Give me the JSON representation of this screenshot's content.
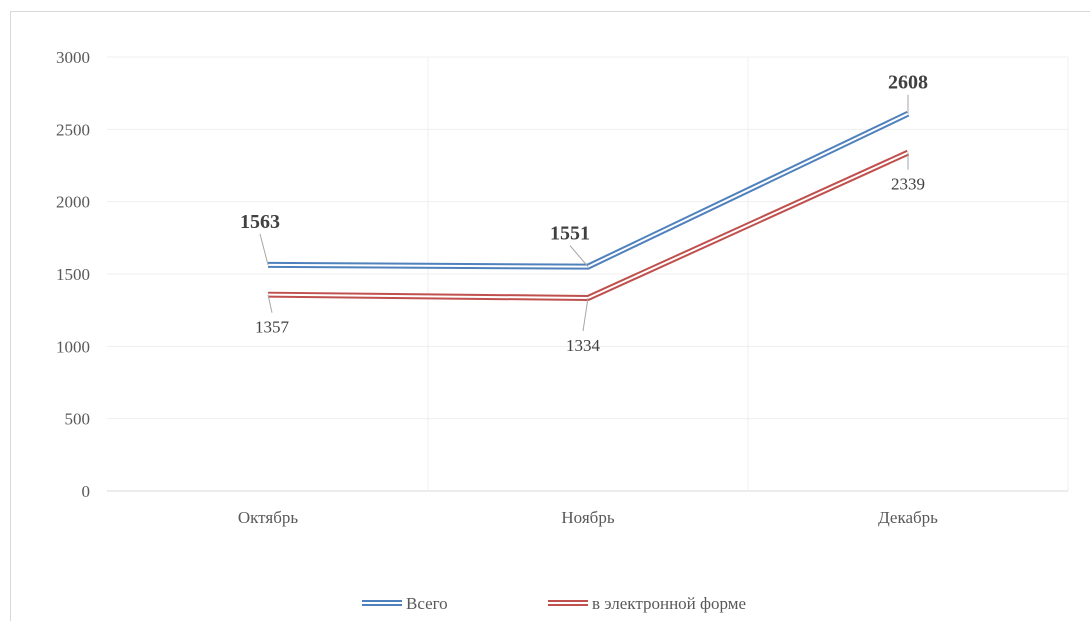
{
  "chart_data": {
    "type": "line",
    "categories": [
      "Октябрь",
      "Ноябрь",
      "Декабрь"
    ],
    "series": [
      {
        "name": "Всего",
        "values": [
          1563,
          1551,
          2608
        ],
        "color": "#4f81bd",
        "label_bold": true
      },
      {
        "name": "в электронной форме",
        "values": [
          1357,
          1334,
          2339
        ],
        "color": "#c0504d",
        "label_bold": false
      }
    ],
    "yticks": [
      0,
      500,
      1000,
      1500,
      2000,
      2500,
      3000
    ],
    "ylim": [
      0,
      3000
    ],
    "grid": true,
    "legend_position": "bottom"
  }
}
